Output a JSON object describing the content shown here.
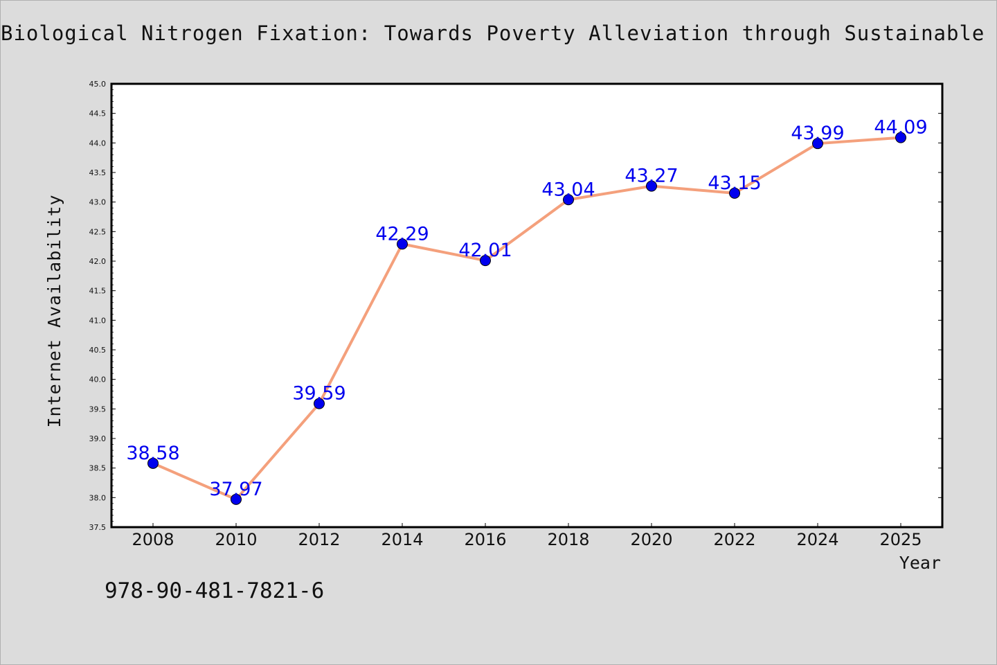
{
  "footer": {
    "isbn": "978-90-481-7821-6"
  },
  "chart_data": {
    "type": "line",
    "title": "Biological Nitrogen Fixation: Towards Poverty Alleviation through Sustainable Ag",
    "xlabel": "Year",
    "ylabel": "Internet Availability",
    "categories": [
      "2008",
      "2010",
      "2012",
      "2014",
      "2016",
      "2018",
      "2020",
      "2022",
      "2024",
      "2025"
    ],
    "series": [
      {
        "values": [
          38.58,
          37.97,
          39.59,
          42.29,
          42.01,
          43.04,
          43.27,
          43.15,
          43.99,
          44.09
        ]
      }
    ],
    "value_labels": [
      "38.58",
      "37.97",
      "39.59",
      "42.29",
      "42.01",
      "43.04",
      "43.27",
      "43.15",
      "43.99",
      "44.09"
    ],
    "ylim": [
      37.5,
      45.0
    ],
    "yticks": [
      37.5,
      38.0,
      38.5,
      39.0,
      39.5,
      40.0,
      40.5,
      41.0,
      41.5,
      42.0,
      42.5,
      43.0,
      43.5,
      44.0,
      44.5,
      45.0
    ],
    "ytick_labels": [
      "37.5",
      "38.0",
      "38.5",
      "39.0",
      "39.5",
      "40.0",
      "40.5",
      "41.0",
      "41.5",
      "42.0",
      "42.5",
      "43.0",
      "43.5",
      "44.0",
      "44.5",
      "45.0"
    ],
    "grid": false,
    "legend": "none",
    "colors": {
      "line": "#f4a07c",
      "marker": "#0000ee",
      "label": "#0000ee",
      "frame": "#000000",
      "plot_bg": "#ffffff"
    }
  }
}
